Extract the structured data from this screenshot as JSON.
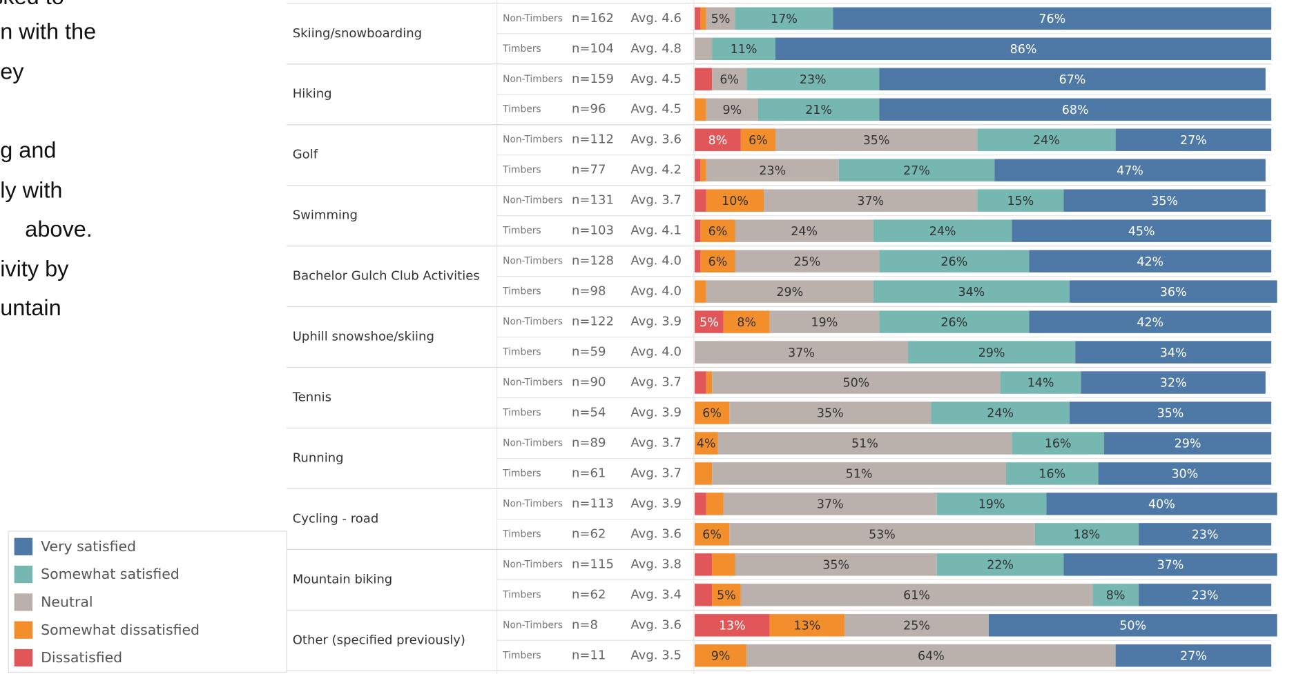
{
  "side_text": [
    "sked to",
    "n with the",
    "ey",
    "g and",
    "ly with",
    "above.",
    "ivity by",
    "untain"
  ],
  "chart_data": {
    "type": "stacked_bar",
    "groups": [
      "Skiing/snowboarding",
      "Hiking",
      "Golf",
      "Swimming",
      "Bachelor Gulch Club Activities",
      "Uphill snowshoe/skiing",
      "Tennis",
      "Running",
      "Cycling - road",
      "Mountain biking",
      "Other (specified previously)"
    ],
    "categories": [
      "Non-Timbers",
      "Timbers",
      "Non-Timbers",
      "Timbers",
      "Non-Timbers",
      "Timbers",
      "Non-Timbers",
      "Timbers",
      "Non-Timbers",
      "Timbers",
      "Non-Timbers",
      "Timbers",
      "Non-Timbers",
      "Timbers",
      "Non-Timbers",
      "Timbers",
      "Non-Timbers",
      "Timbers",
      "Non-Timbers",
      "Timbers",
      "Non-Timbers",
      "Timbers"
    ],
    "n_labels": [
      "n=162",
      "n=104",
      "n=159",
      "n=96",
      "n=112",
      "n=77",
      "n=131",
      "n=103",
      "n=128",
      "n=98",
      "n=122",
      "n=59",
      "n=90",
      "n=54",
      "n=89",
      "n=61",
      "n=113",
      "n=62",
      "n=115",
      "n=62",
      "n=8",
      "n=11"
    ],
    "avg_labels": [
      "Avg. 4.6",
      "Avg. 4.8",
      "Avg. 4.5",
      "Avg. 4.5",
      "Avg. 3.6",
      "Avg. 4.2",
      "Avg. 3.7",
      "Avg. 4.1",
      "Avg. 4.0",
      "Avg. 4.0",
      "Avg. 3.9",
      "Avg. 4.0",
      "Avg. 3.7",
      "Avg. 3.9",
      "Avg. 3.7",
      "Avg. 3.7",
      "Avg. 3.9",
      "Avg. 3.6",
      "Avg. 3.8",
      "Avg. 3.4",
      "Avg. 3.6",
      "Avg. 3.5"
    ],
    "xlim": [
      0,
      100
    ],
    "series": [
      {
        "name": "Dissatisfied",
        "color": "#e15759",
        "values": [
          1,
          0,
          3,
          0,
          8,
          1,
          2,
          1,
          1,
          0,
          5,
          0,
          2,
          0,
          0,
          0,
          2,
          0,
          3,
          3,
          13,
          0
        ],
        "value_labels": [
          null,
          null,
          null,
          null,
          "8%",
          null,
          null,
          null,
          null,
          null,
          "5%",
          null,
          null,
          null,
          null,
          null,
          null,
          null,
          null,
          null,
          "13%",
          null
        ]
      },
      {
        "name": "Somewhat dissatisfied",
        "color": "#f28e2b",
        "values": [
          1,
          0,
          0,
          2,
          6,
          1,
          10,
          6,
          6,
          2,
          8,
          0,
          1,
          6,
          4,
          3,
          3,
          6,
          4,
          5,
          13,
          9
        ],
        "value_labels": [
          null,
          null,
          null,
          null,
          "6%",
          null,
          "10%",
          "6%",
          "6%",
          null,
          "8%",
          null,
          null,
          "6%",
          "4%",
          null,
          null,
          "6%",
          null,
          "5%",
          "13%",
          "9%"
        ]
      },
      {
        "name": "Neutral",
        "color": "#bab0ac",
        "values": [
          5,
          3,
          6,
          9,
          35,
          23,
          37,
          24,
          25,
          29,
          19,
          37,
          50,
          35,
          51,
          51,
          37,
          53,
          35,
          61,
          25,
          64
        ],
        "value_labels": [
          "5%",
          null,
          "6%",
          "9%",
          "35%",
          "23%",
          "37%",
          "24%",
          "25%",
          "29%",
          "19%",
          "37%",
          "50%",
          "35%",
          "51%",
          "51%",
          "37%",
          "53%",
          "35%",
          "61%",
          "25%",
          "64%"
        ]
      },
      {
        "name": "Somewhat satisfied",
        "color": "#76b7b2",
        "values": [
          17,
          11,
          23,
          21,
          24,
          27,
          15,
          24,
          26,
          34,
          26,
          29,
          14,
          24,
          16,
          16,
          19,
          18,
          22,
          8,
          0,
          0
        ],
        "value_labels": [
          "17%",
          "11%",
          "23%",
          "21%",
          "24%",
          "27%",
          "15%",
          "24%",
          "26%",
          "34%",
          "26%",
          "29%",
          "14%",
          "24%",
          "16%",
          "16%",
          "19%",
          "18%",
          "22%",
          "8%",
          null,
          null
        ]
      },
      {
        "name": "Very satisfied",
        "color": "#4e79a7",
        "values": [
          76,
          86,
          67,
          68,
          27,
          47,
          35,
          45,
          42,
          36,
          42,
          34,
          32,
          35,
          29,
          30,
          40,
          23,
          37,
          23,
          50,
          27
        ],
        "value_labels": [
          "76%",
          "86%",
          "67%",
          "68%",
          "27%",
          "47%",
          "35%",
          "45%",
          "42%",
          "36%",
          "42%",
          "34%",
          "32%",
          "35%",
          "29%",
          "30%",
          "40%",
          "23%",
          "37%",
          "23%",
          "50%",
          "27%"
        ]
      }
    ]
  }
}
